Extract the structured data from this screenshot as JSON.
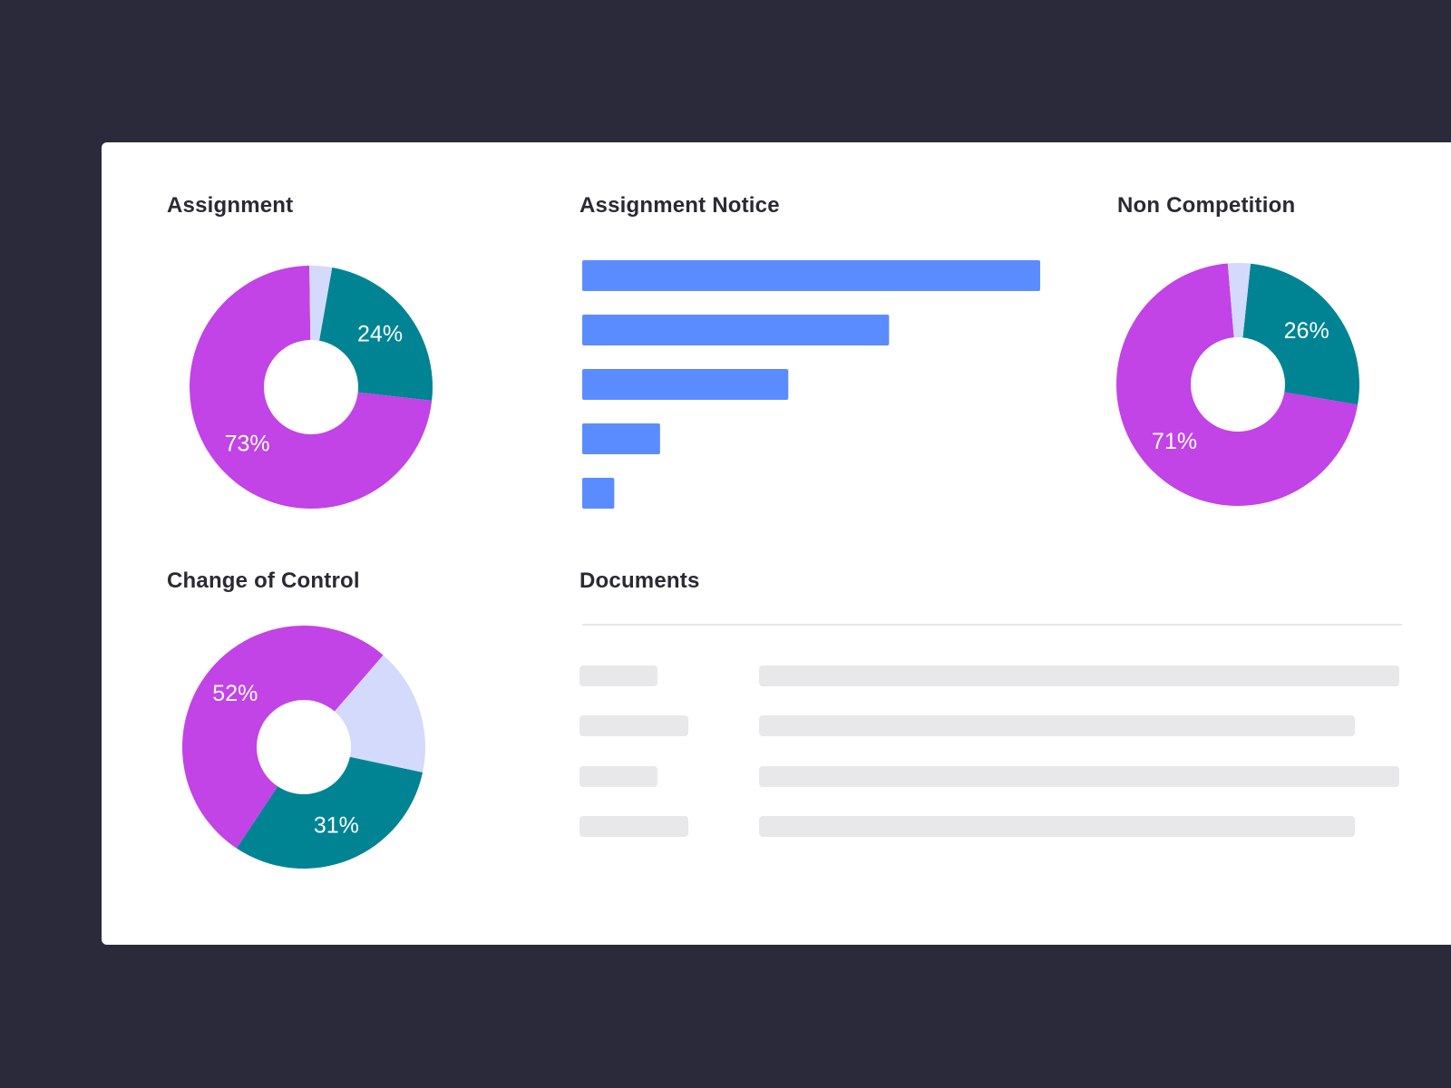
{
  "colors": {
    "background": "#2b2a3b",
    "card": "#ffffff",
    "magenta": "#c243e6",
    "teal": "#008494",
    "lavender": "#d4dafc",
    "bar_blue": "#5b8cff",
    "skeleton": "#e8e8eb"
  },
  "chart_data": [
    {
      "type": "pie",
      "title": "Assignment",
      "slices": [
        {
          "value": 24,
          "label": "24%",
          "color": "#008494"
        },
        {
          "value": 73,
          "label": "73%",
          "color": "#c243e6"
        },
        {
          "value": 3,
          "label": "",
          "color": "#d4dafc"
        }
      ]
    },
    {
      "type": "bar",
      "title": "Assignment Notice",
      "orientation": "horizontal",
      "values": [
        100,
        67,
        45,
        17,
        7
      ],
      "color": "#5b8cff"
    },
    {
      "type": "pie",
      "title": "Non Competition",
      "slices": [
        {
          "value": 26,
          "label": "26%",
          "color": "#008494"
        },
        {
          "value": 71,
          "label": "71%",
          "color": "#c243e6"
        },
        {
          "value": 3,
          "label": "",
          "color": "#d4dafc"
        }
      ]
    },
    {
      "type": "pie",
      "title": "Change of Control",
      "slices": [
        {
          "value": 31,
          "label": "31%",
          "color": "#008494"
        },
        {
          "value": 52,
          "label": "52%",
          "color": "#c243e6"
        },
        {
          "value": 17,
          "label": "",
          "color": "#d4dafc"
        }
      ]
    }
  ],
  "documents": {
    "title": "Documents",
    "rows": 4
  }
}
